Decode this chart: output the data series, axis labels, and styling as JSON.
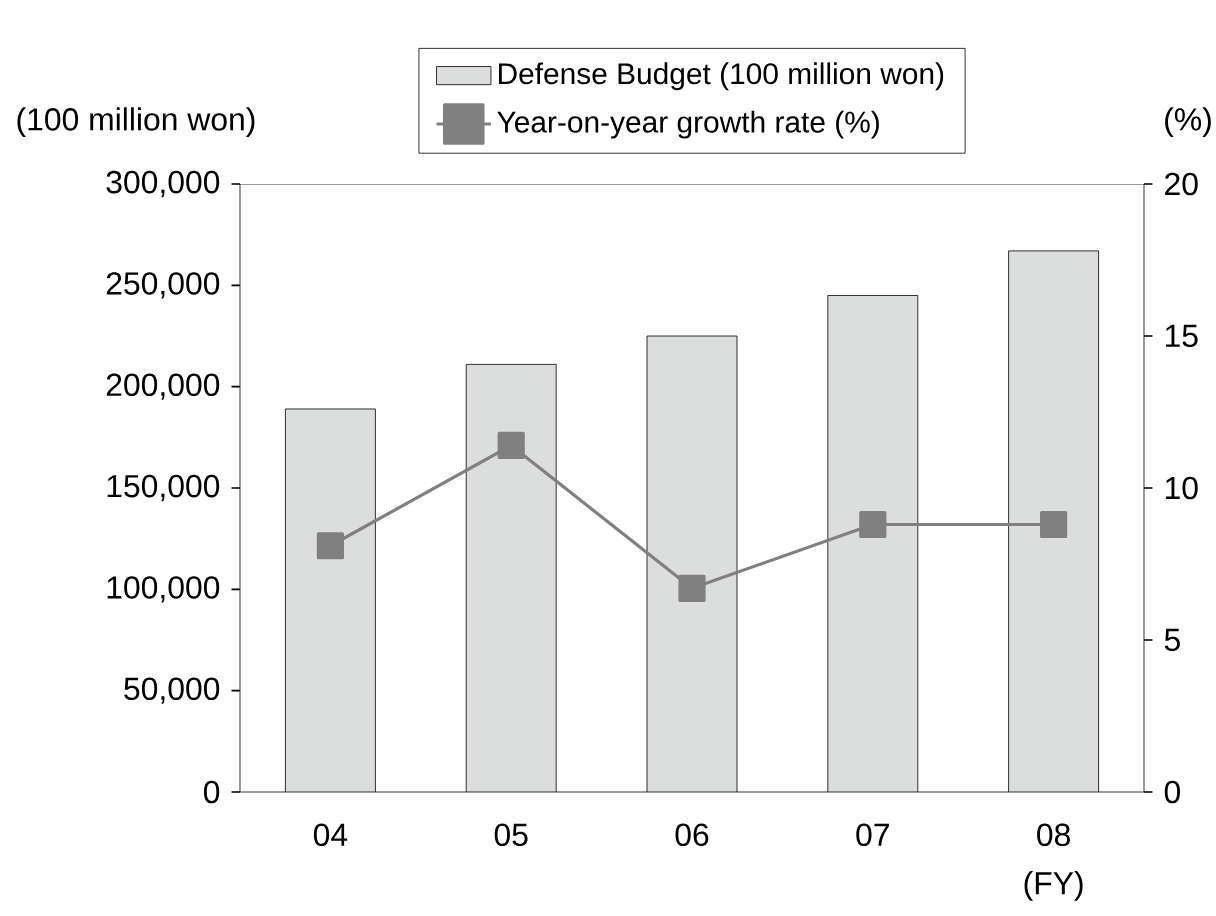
{
  "chart_data": {
    "type": "bar",
    "categories": [
      "04",
      "05",
      "06",
      "07",
      "08"
    ],
    "xlabel": "(FY)",
    "ylabel": "(100 million won)",
    "y2label": "(%)",
    "series": [
      {
        "name": "Defense Budget (100 million won)",
        "color": "#dcdddd",
        "values": [
          189000,
          211000,
          225000,
          245000,
          267000
        ]
      },
      {
        "name": "Year-on-year growth rate (%)",
        "type": "line",
        "axis": "y2",
        "color": "#808080",
        "marker": "square",
        "values": [
          8.1,
          11.4,
          6.7,
          8.8,
          8.8
        ]
      }
    ],
    "ylim": [
      0,
      300000
    ],
    "yticks": [
      {
        "value": 0,
        "label": "0"
      },
      {
        "value": 50000,
        "label": "50,000"
      },
      {
        "value": 100000,
        "label": "100,000"
      },
      {
        "value": 150000,
        "label": "150,000"
      },
      {
        "value": 200000,
        "label": "200,000"
      },
      {
        "value": 250000,
        "label": "250,000"
      },
      {
        "value": 300000,
        "label": "300,000"
      }
    ],
    "y2lim": [
      0,
      20
    ],
    "y2ticks": [
      0,
      5,
      10,
      15,
      20
    ],
    "legend": "top",
    "grid": false
  }
}
